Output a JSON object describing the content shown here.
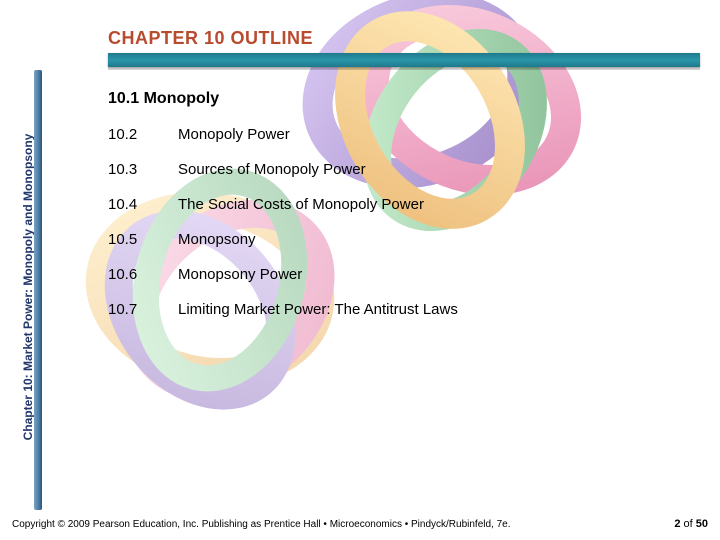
{
  "header": {
    "title": "CHAPTER 10 OUTLINE",
    "title_color": "#b84a2e",
    "bar_color": "#2a8fa2"
  },
  "sidebar": {
    "text": "Chapter 10:  Market Power: Monopoly and Monopsony",
    "text_color": "#21376b",
    "bar_color": "#4b7ba3"
  },
  "outline": {
    "first": "10.1 Monopoly",
    "items": [
      {
        "num": "10.2",
        "label": "Monopoly Power"
      },
      {
        "num": "10.3",
        "label": "Sources of Monopoly Power"
      },
      {
        "num": "10.4",
        "label": "The Social Costs of Monopoly Power"
      },
      {
        "num": "10.5",
        "label": "Monopsony"
      },
      {
        "num": "10.6",
        "label": "Monopsony Power"
      },
      {
        "num": "10.7",
        "label": "Limiting Market Power: The Antitrust Laws"
      }
    ]
  },
  "footer": {
    "copyright": "Copyright © 2009 Pearson Education, Inc. Publishing as Prentice Hall  •  Microeconomics  •  Pindyck/Rubinfeld, 7e.",
    "page_current": "2",
    "page_of_label": "of",
    "page_total": "50"
  },
  "decor": {
    "ring_colors": [
      "#e84f8a",
      "#f5a623",
      "#6a3fb5",
      "#3fa65a"
    ]
  }
}
